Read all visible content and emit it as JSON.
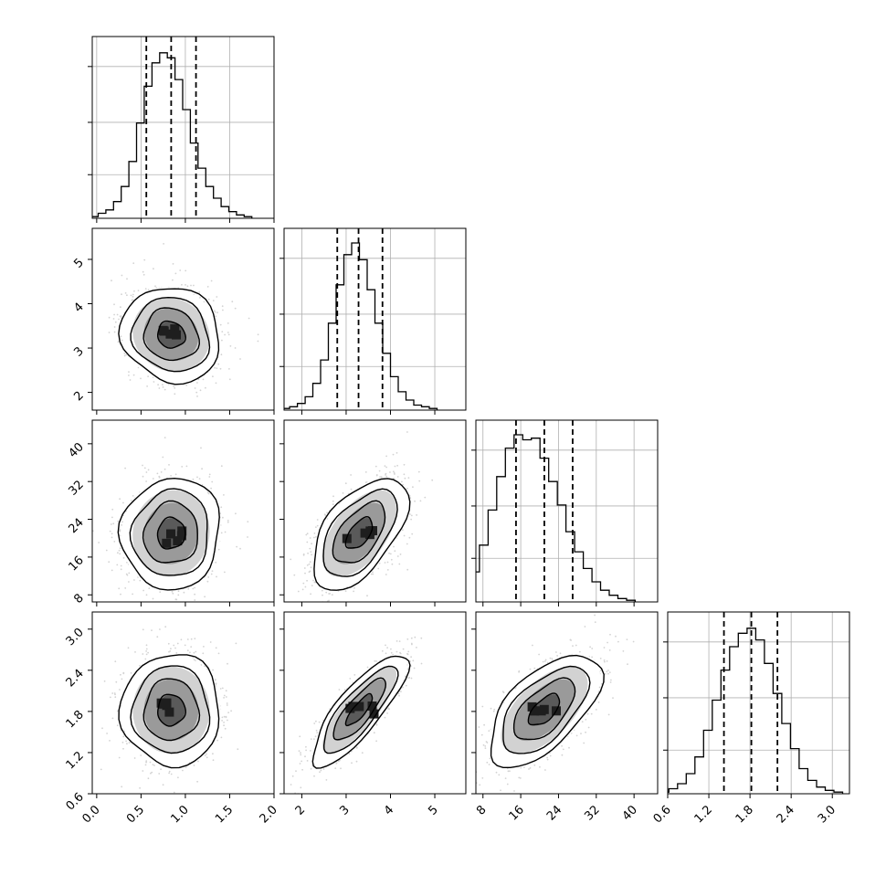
{
  "chart_data": {
    "type": "corner",
    "params": [
      {
        "range": [
          -0.05,
          2.0
        ],
        "ticks": [
          "0.0",
          "0.5",
          "1.0",
          "1.5",
          "2.0"
        ],
        "tick_values": [
          0.0,
          0.5,
          1.0,
          1.5,
          2.0
        ],
        "quantiles": [
          0.56,
          0.84,
          1.12
        ]
      },
      {
        "range": [
          1.6,
          5.7
        ],
        "ticks": [
          "2",
          "3",
          "4",
          "5"
        ],
        "tick_values": [
          2,
          3,
          4,
          5
        ],
        "quantiles": [
          2.8,
          3.28,
          3.82
        ]
      },
      {
        "range": [
          6.5,
          45.0
        ],
        "ticks": [
          "8",
          "16",
          "24",
          "32",
          "40"
        ],
        "tick_values": [
          8,
          16,
          24,
          32,
          40
        ],
        "quantiles": [
          15.0,
          21.0,
          27.0
        ]
      },
      {
        "range": [
          0.6,
          3.25
        ],
        "ticks": [
          "0.6",
          "1.2",
          "1.8",
          "2.4",
          "3.0"
        ],
        "tick_values": [
          0.6,
          1.2,
          1.8,
          2.4,
          3.0
        ],
        "quantiles": [
          1.42,
          1.82,
          2.2
        ]
      }
    ],
    "stats": {
      "means": [
        0.84,
        3.3,
        21.0,
        1.82
      ],
      "sds": [
        0.26,
        0.5,
        5.5,
        0.38
      ],
      "correlations": [
        [
          1,
          -0.1,
          0.05,
          0.0
        ],
        [
          -0.1,
          1,
          0.55,
          0.82
        ],
        [
          0.05,
          0.55,
          1,
          0.6
        ],
        [
          0.0,
          0.82,
          0.6,
          1
        ]
      ]
    },
    "histograms": [
      [
        0.01,
        0.03,
        0.05,
        0.1,
        0.19,
        0.34,
        0.57,
        0.79,
        0.93,
        0.99,
        0.96,
        0.83,
        0.65,
        0.45,
        0.3,
        0.19,
        0.12,
        0.07,
        0.04,
        0.02,
        0.01
      ],
      [
        0.01,
        0.02,
        0.04,
        0.08,
        0.16,
        0.3,
        0.52,
        0.75,
        0.93,
        1.0,
        0.9,
        0.72,
        0.52,
        0.34,
        0.2,
        0.11,
        0.06,
        0.03,
        0.02,
        0.01
      ],
      [
        0.02,
        0.08,
        0.18,
        0.34,
        0.55,
        0.75,
        0.92,
        1.0,
        0.97,
        0.98,
        0.86,
        0.72,
        0.58,
        0.42,
        0.3,
        0.2,
        0.12,
        0.07,
        0.04,
        0.02,
        0.01
      ],
      [
        0.01,
        0.03,
        0.06,
        0.12,
        0.22,
        0.38,
        0.56,
        0.74,
        0.88,
        0.96,
        0.99,
        0.92,
        0.78,
        0.6,
        0.42,
        0.27,
        0.15,
        0.08,
        0.04,
        0.02,
        0.01
      ]
    ],
    "grid": true,
    "colors": {
      "line": "#000000",
      "grid": "#b0b0b0",
      "scatter": "#9e9e9e"
    }
  }
}
